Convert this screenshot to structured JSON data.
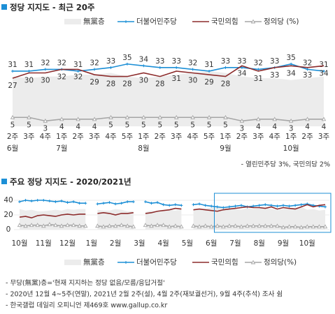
{
  "chart_data": [
    {
      "type": "line",
      "title": "정당 지지도 - 최근 20주",
      "categories": [
        "2주",
        "3주",
        "4주",
        "1주",
        "2주",
        "3주",
        "4주",
        "5주",
        "1주",
        "2주",
        "3주",
        "4주",
        "5주",
        "1주",
        "2주",
        "3주",
        "4주",
        "1주",
        "2주",
        "3주"
      ],
      "months": [
        "6월",
        null,
        null,
        "7월",
        null,
        null,
        null,
        null,
        "8월",
        null,
        null,
        null,
        null,
        "9월",
        null,
        null,
        null,
        "10월",
        null,
        null
      ],
      "ylim": [
        0,
        40
      ],
      "show_values": true,
      "series": [
        {
          "name": "無黨층",
          "style": "area",
          "color": "#ececec",
          "values": [
            28,
            27,
            28,
            28,
            29,
            29,
            30,
            28,
            27,
            28,
            29,
            30,
            31,
            30,
            28,
            27,
            27,
            26,
            27,
            28
          ]
        },
        {
          "name": "더불어민주당",
          "style": "line",
          "marker": "plus",
          "label_pos": "above",
          "color": "#1c8fd6",
          "values": [
            31,
            31,
            32,
            32,
            31,
            32,
            33,
            35,
            34,
            33,
            33,
            32,
            31,
            33,
            33,
            32,
            33,
            35,
            32,
            31
          ]
        },
        {
          "name": "국민의힘",
          "style": "line",
          "marker": "none",
          "label_pos": "below",
          "color": "#8c2b2b",
          "values": [
            27,
            30,
            30,
            32,
            32,
            29,
            28,
            28,
            30,
            28,
            31,
            30,
            29,
            28,
            34,
            31,
            33,
            34,
            33,
            34
          ]
        },
        {
          "name": "정의당 (%)",
          "style": "line",
          "marker": "triangle",
          "label_pos": "below",
          "color": "#a6a6a6",
          "values": [
            5,
            5,
            3,
            4,
            4,
            4,
            5,
            5,
            5,
            5,
            5,
            5,
            5,
            5,
            3,
            4,
            4,
            3,
            4,
            4
          ]
        }
      ],
      "note": "- 열린민주당 3%, 국민의당 2%"
    },
    {
      "type": "line",
      "title": "주요 정당 지지도 - 2020/2021년",
      "categories": [
        "10월",
        null,
        null,
        null,
        "11월",
        null,
        null,
        null,
        "12월",
        null,
        null,
        null,
        "1월",
        null,
        null,
        null,
        "2월",
        null,
        null,
        null,
        "3월",
        null,
        null,
        null,
        "4월",
        null,
        null,
        null,
        "5월",
        null,
        null,
        null,
        "6월",
        null,
        null,
        null,
        "7월",
        null,
        null,
        null,
        "8월",
        null,
        null,
        null,
        "9월",
        null,
        null,
        null,
        "10월",
        null,
        null,
        null
      ],
      "ylim": [
        0,
        40
      ],
      "yticks": [
        0,
        20,
        40
      ],
      "grid": true,
      "show_values": false,
      "series": [
        {
          "name": "無黨층",
          "style": "area",
          "color": "#ececec",
          "values": [
            28,
            26,
            27,
            25,
            25,
            26,
            27,
            26,
            28,
            27,
            28,
            28,
            null,
            27,
            26,
            26,
            28,
            27,
            25,
            25,
            null,
            24,
            26,
            25,
            26,
            27,
            26,
            28,
            null,
            28,
            27,
            29,
            30,
            31,
            30,
            29,
            28,
            27,
            29,
            28,
            29,
            30,
            28,
            27,
            28,
            29,
            30,
            31,
            27,
            28,
            26,
            27
          ]
        },
        {
          "name": "더불어민주당",
          "style": "line",
          "marker": "plus",
          "color": "#1c8fd6",
          "values": [
            38,
            40,
            39,
            40,
            40,
            39,
            38,
            39,
            37,
            38,
            36,
            36,
            null,
            35,
            36,
            37,
            35,
            36,
            38,
            38,
            null,
            38,
            36,
            37,
            34,
            33,
            34,
            33,
            null,
            34,
            35,
            33,
            32,
            31,
            30,
            31,
            32,
            33,
            31,
            32,
            33,
            34,
            33,
            32,
            33,
            32,
            33,
            34,
            35,
            33,
            32,
            31
          ]
        },
        {
          "name": "국민의힘",
          "style": "line",
          "marker": "none",
          "color": "#8c2b2b",
          "values": [
            17,
            18,
            16,
            19,
            20,
            19,
            18,
            20,
            21,
            20,
            21,
            21,
            null,
            22,
            23,
            22,
            20,
            22,
            22,
            23,
            null,
            22,
            23,
            25,
            26,
            27,
            29,
            28,
            null,
            27,
            28,
            27,
            26,
            25,
            27,
            28,
            29,
            30,
            31,
            30,
            30,
            29,
            31,
            28,
            30,
            29,
            28,
            31,
            34,
            31,
            33,
            34
          ]
        },
        {
          "name": "정의당(%)",
          "style": "line",
          "marker": "triangle",
          "color": "#a6a6a6",
          "values": [
            6,
            5,
            6,
            6,
            5,
            7,
            6,
            5,
            6,
            6,
            5,
            5,
            null,
            5,
            4,
            5,
            5,
            6,
            5,
            4,
            null,
            6,
            5,
            6,
            6,
            4,
            5,
            4,
            null,
            5,
            4,
            5,
            4,
            5,
            4,
            5,
            5,
            4,
            5,
            5,
            5,
            5,
            5,
            5,
            3,
            4,
            4,
            3,
            4,
            4,
            4,
            4
          ]
        }
      ]
    }
  ],
  "footnotes": [
    "- 무당(無黨)층='현재 지지하는 정당 없음/모름/응답거절'",
    "- 2020년 12월 4~5주(연말), 2021년 2월 2주(설), 4월 2주(재보궐선거), 9월 4주(추석) 조사 쉼",
    "- 한국갤럽 데일리 오피니언 제469호 www.gallup.co.kr"
  ]
}
